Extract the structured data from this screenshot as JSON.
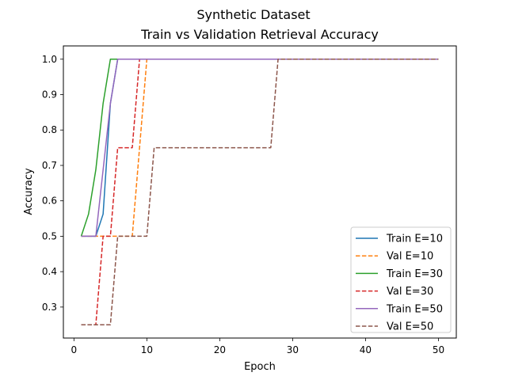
{
  "chart_data": {
    "type": "line",
    "title": "Synthetic Dataset",
    "subtitle": "Train vs Validation Retrieval Accuracy",
    "xlabel": "Epoch",
    "ylabel": "Accuracy",
    "xlim": [
      -1.45,
      52.45
    ],
    "ylim": [
      0.2125,
      1.0375
    ],
    "xticks": [
      0,
      10,
      20,
      30,
      40,
      50
    ],
    "yticks": [
      0.3,
      0.4,
      0.5,
      0.6,
      0.7,
      0.8,
      0.9,
      1.0
    ],
    "ytick_labels": [
      "0.3",
      "0.4",
      "0.5",
      "0.6",
      "0.7",
      "0.8",
      "0.9",
      "1.0"
    ],
    "grid": false,
    "legend_position": "lower-right",
    "series": [
      {
        "name": "Train E=10",
        "color": "#1f77b4",
        "dash": "solid",
        "x": [
          1,
          2,
          3,
          4,
          5,
          6,
          50
        ],
        "y": [
          0.5,
          0.5,
          0.5,
          0.5625,
          0.875,
          1.0,
          1.0
        ]
      },
      {
        "name": "Val E=10",
        "color": "#ff7f0e",
        "dash": "dashed",
        "x": [
          1,
          2,
          3,
          4,
          8,
          9,
          10,
          50
        ],
        "y": [
          0.5,
          0.5,
          0.5,
          0.5,
          0.5,
          0.75,
          1.0,
          1.0
        ]
      },
      {
        "name": "Train E=30",
        "color": "#2ca02c",
        "dash": "solid",
        "x": [
          1,
          2,
          3,
          4,
          5,
          50
        ],
        "y": [
          0.5,
          0.5625,
          0.6875,
          0.875,
          1.0,
          1.0
        ]
      },
      {
        "name": "Val E=30",
        "color": "#d62728",
        "dash": "dashed",
        "x": [
          1,
          3,
          4,
          5,
          6,
          8,
          9,
          50
        ],
        "y": [
          0.25,
          0.25,
          0.5,
          0.5,
          0.75,
          0.75,
          1.0,
          1.0
        ]
      },
      {
        "name": "Train E=50",
        "color": "#9467bd",
        "dash": "solid",
        "x": [
          1,
          2,
          3,
          4,
          5,
          6,
          50
        ],
        "y": [
          0.5,
          0.5,
          0.5,
          0.6875,
          0.875,
          1.0,
          1.0
        ]
      },
      {
        "name": "Val E=50",
        "color": "#8c564b",
        "dash": "dashed",
        "x": [
          1,
          5,
          6,
          10,
          11,
          27,
          28,
          50
        ],
        "y": [
          0.25,
          0.25,
          0.5,
          0.5,
          0.75,
          0.75,
          1.0,
          1.0
        ]
      }
    ]
  }
}
